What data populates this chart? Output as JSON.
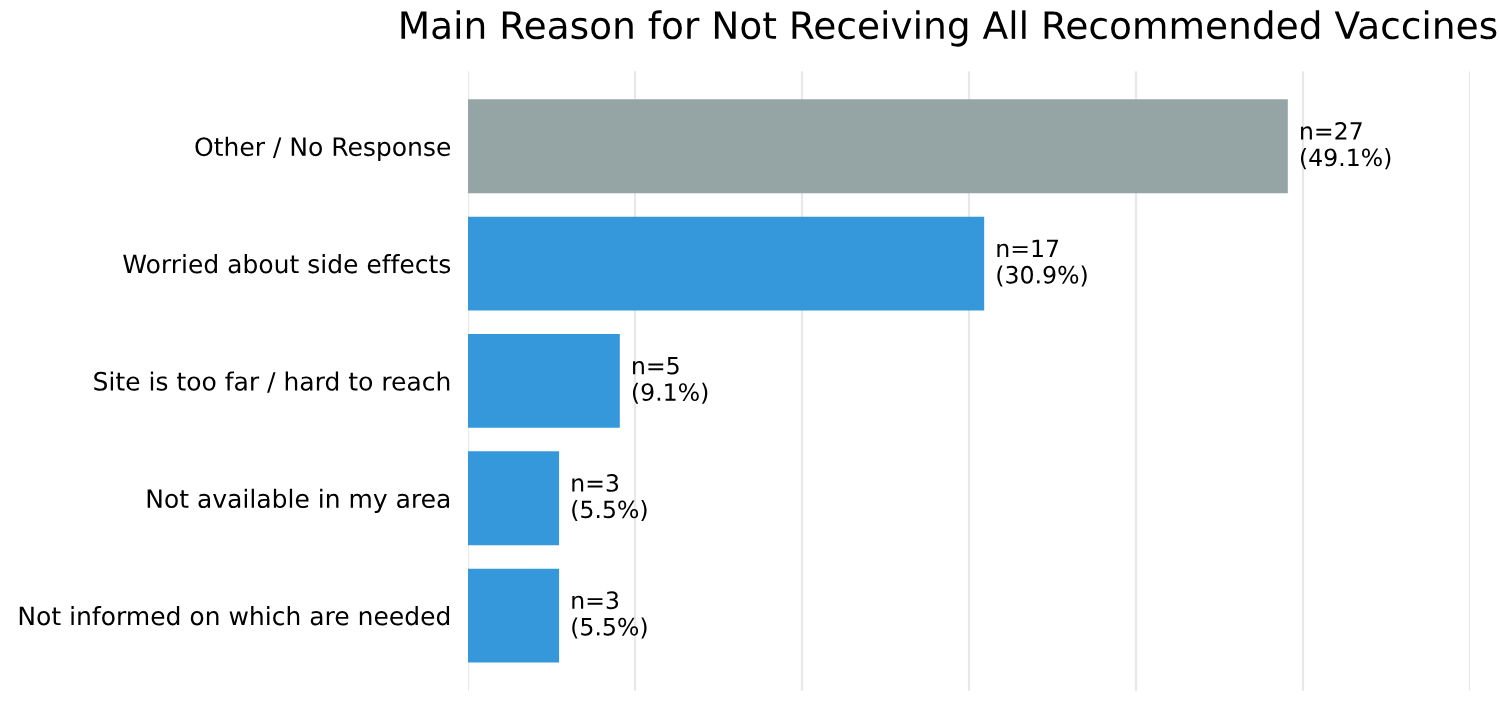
{
  "chart_data": {
    "type": "bar",
    "orientation": "horizontal",
    "title": "Main Reason for Not Receiving All Recommended Vaccines",
    "categories": [
      "Other / No Response",
      "Worried about side effects",
      "Site is too far / hard to reach",
      "Not available in my area",
      "Not informed on which are needed"
    ],
    "values": [
      27,
      17,
      5,
      3,
      3
    ],
    "colors": [
      "#95a5a6",
      "#3498db",
      "#3498db",
      "#3498db",
      "#3498db"
    ],
    "value_labels": [
      "n=27\n(49.1%)",
      "n=17\n(30.9%)",
      "n=5\n(9.1%)",
      "n=3\n(5.5%)",
      "n=3\n(5.5%)"
    ],
    "xlim": [
      0,
      33
    ],
    "xticks": [
      {
        "value": 0,
        "label": null
      },
      {
        "value": 5.5,
        "label": null
      },
      {
        "value": 11,
        "label": null
      },
      {
        "value": 16.5,
        "label": null
      },
      {
        "value": 22,
        "label": null
      },
      {
        "value": 27.5,
        "label": null
      },
      {
        "value": 33,
        "label": null
      }
    ],
    "tick_labels": "y",
    "grid": "x",
    "legend": false
  }
}
